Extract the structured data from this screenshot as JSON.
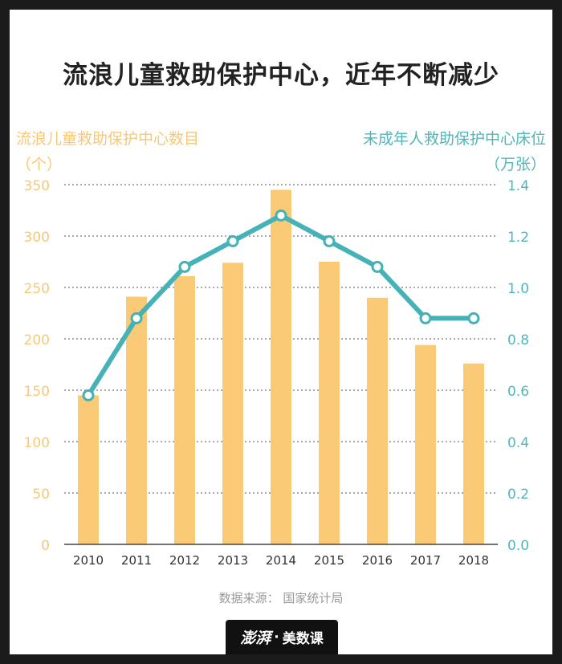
{
  "title": "流浪儿童救助保护中心，近年不断减少",
  "chart_data": {
    "type": "bar+line",
    "categories": [
      "2010",
      "2011",
      "2012",
      "2013",
      "2014",
      "2015",
      "2016",
      "2017",
      "2018"
    ],
    "bar_series": {
      "name": "流浪儿童救助保护中心数目",
      "unit": "（个）",
      "values": [
        145,
        241,
        261,
        274,
        345,
        275,
        240,
        194,
        176
      ]
    },
    "line_series": {
      "name": "未成年人救助保护中心床位",
      "unit": "（万张）",
      "values": [
        0.58,
        0.88,
        1.08,
        1.18,
        1.28,
        1.18,
        1.08,
        0.88,
        0.88
      ]
    },
    "y_left": {
      "min": 0,
      "max": 350,
      "ticks": [
        "0",
        "50",
        "100",
        "150",
        "200",
        "250",
        "300",
        "350"
      ]
    },
    "y_right": {
      "min": 0,
      "max": 1.4,
      "ticks": [
        "0.0",
        "0.2",
        "0.4",
        "0.6",
        "0.8",
        "1.0",
        "1.2",
        "1.4"
      ]
    },
    "grid": true,
    "colors": {
      "bar": "#fbca76",
      "line": "#44b2b6",
      "left_axis": "#f8c874",
      "right_axis": "#4fb7bb"
    }
  },
  "source": "数据来源：  国家统计局",
  "logo": {
    "brand": "澎湃",
    "separator": "·",
    "product": "美数课"
  }
}
